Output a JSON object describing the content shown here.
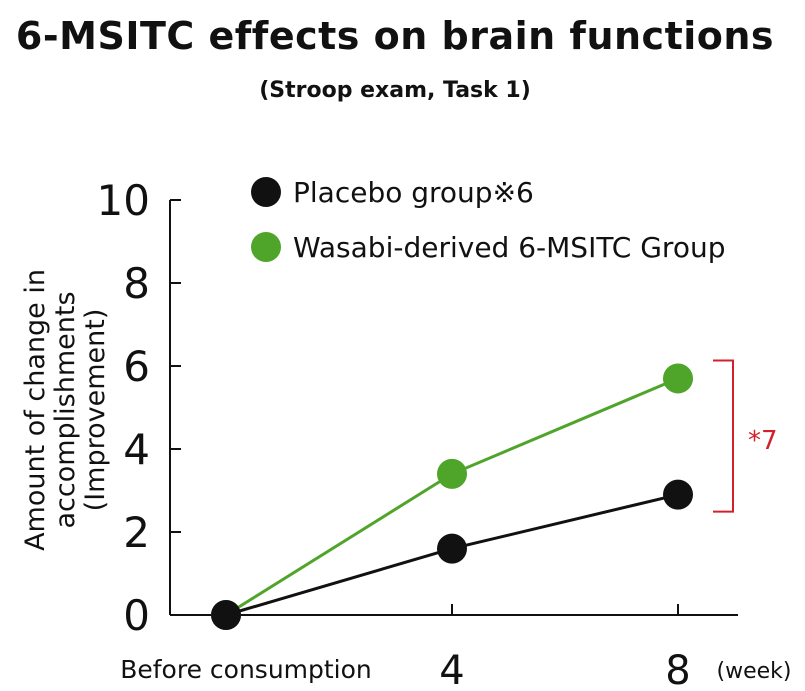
{
  "chart_data": {
    "type": "line",
    "title": "6-MSITC effects on brain functions",
    "subtitle": "(Stroop exam, Task 1)",
    "ylabel_lines": [
      "Amount of change in",
      "accomplishments",
      "(Improvement)"
    ],
    "categories": [
      "Before consumption",
      "4",
      "8"
    ],
    "x_unit": "(week)",
    "ylim": [
      0,
      10
    ],
    "yticks": [
      0,
      2,
      4,
      6,
      8,
      10
    ],
    "series": [
      {
        "name": "Placebo group※6",
        "values": [
          0,
          1.6,
          2.9
        ],
        "color": "#111111"
      },
      {
        "name": "Wasabi-derived 6-MSITC Group",
        "values": [
          0,
          3.4,
          5.7
        ],
        "color": "#4ea52a"
      }
    ],
    "annotation": {
      "text": "*7",
      "color": "#d3202e",
      "from": 2.9,
      "to": 5.7
    },
    "legend_position": "top-right",
    "grid": false
  }
}
